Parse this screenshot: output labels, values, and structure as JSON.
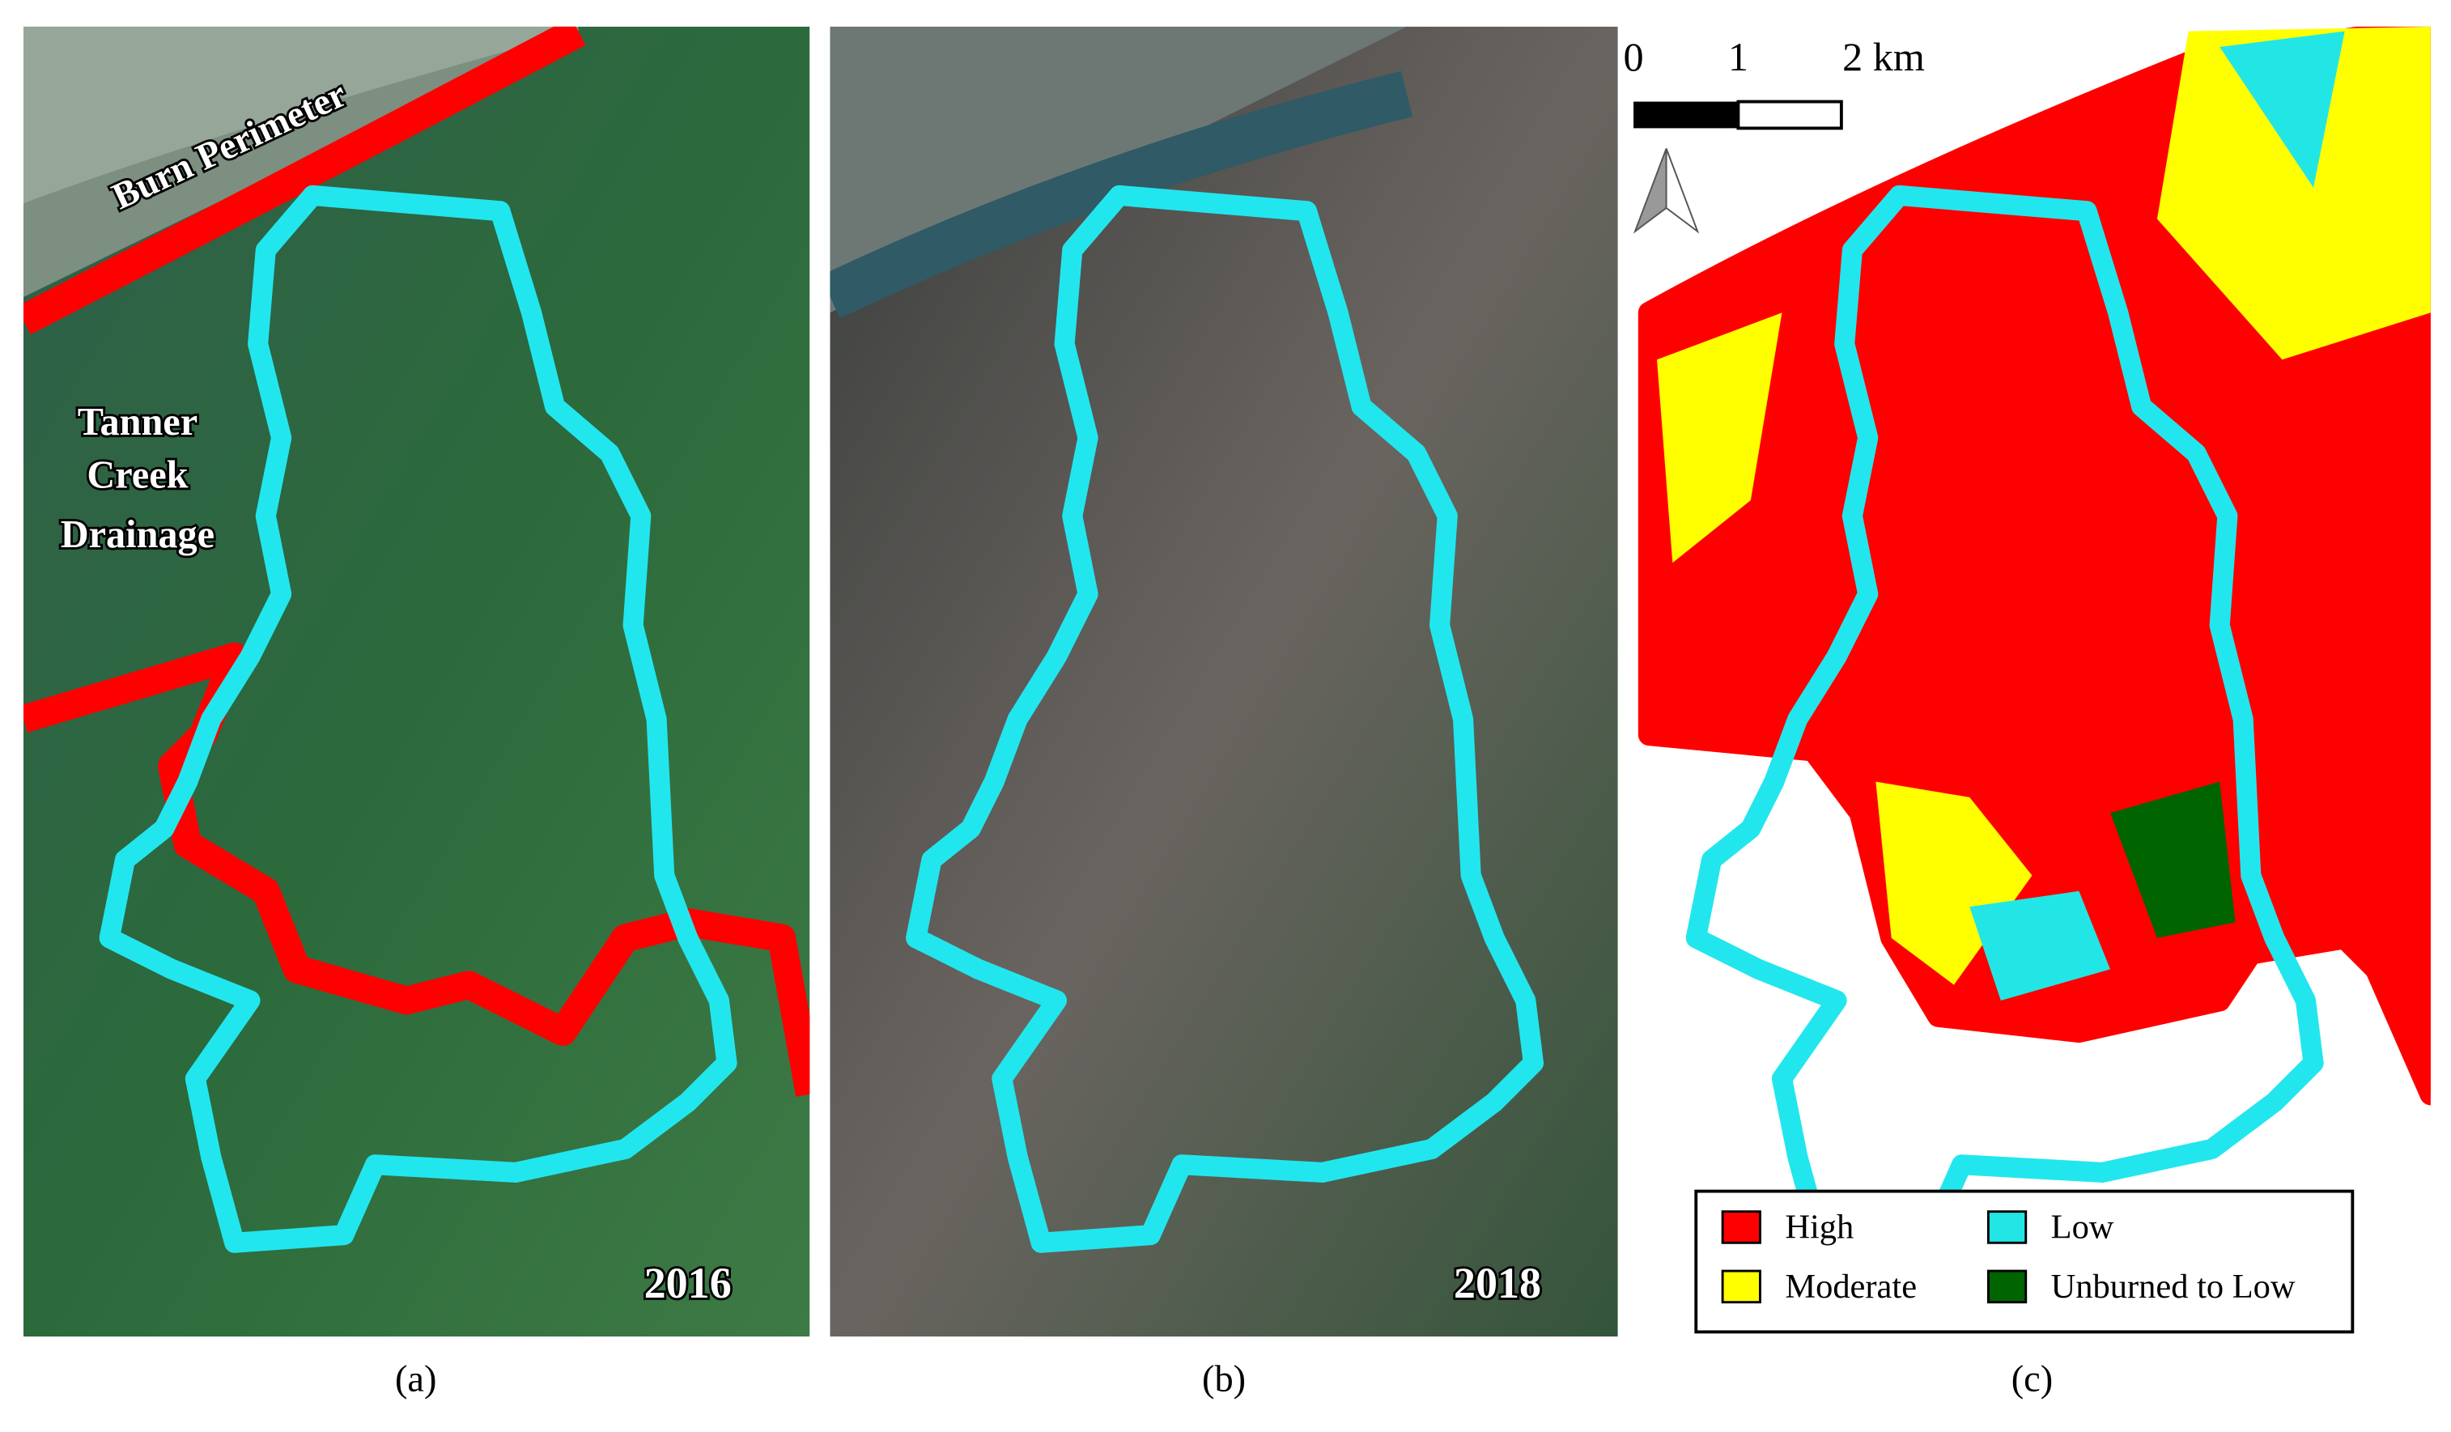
{
  "panels": [
    {
      "label": "(a)",
      "year": "2016"
    },
    {
      "label": "(b)",
      "year": "2018"
    },
    {
      "label": "(c)"
    }
  ],
  "annotations": {
    "burn_perimeter": "Burn Perimeter",
    "drainage": [
      "Tanner",
      "Creek",
      "Drainage"
    ]
  },
  "scale_bar": [
    "0",
    "1",
    "2 km"
  ],
  "legend": [
    {
      "label": "High",
      "color": "#ff0000"
    },
    {
      "label": "Low",
      "color": "#22e6e6"
    },
    {
      "label": "Moderate",
      "color": "#ffff00"
    },
    {
      "label": "Unburned to Low",
      "color": "#006400"
    }
  ]
}
